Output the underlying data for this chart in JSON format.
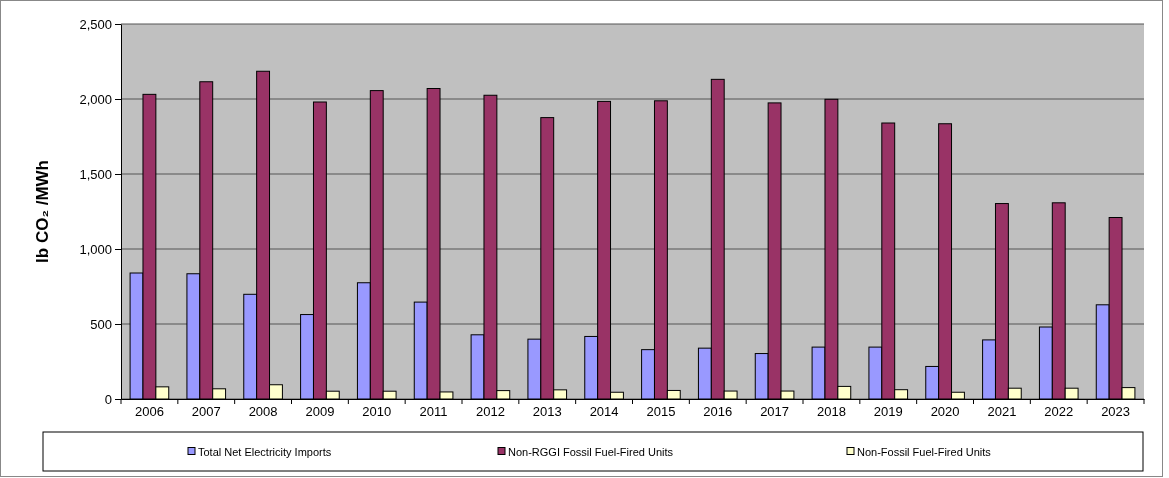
{
  "chart_data": {
    "type": "bar",
    "ylabel": "lb CO₂ /MWh",
    "categories": [
      "2006",
      "2007",
      "2008",
      "2009",
      "2010",
      "2011",
      "2012",
      "2013",
      "2014",
      "2015",
      "2016",
      "2017",
      "2018",
      "2019",
      "2020",
      "2021",
      "2022",
      "2023"
    ],
    "series": [
      {
        "name": "Total Net Electricity Imports",
        "color": "#9999ff",
        "values": [
          840,
          835,
          698,
          563,
          775,
          646,
          428,
          399,
          417,
          329,
          339,
          303,
          346,
          346,
          217,
          394,
          480,
          628
        ]
      },
      {
        "name": "Non-RGGI Fossil Fuel-Fired Units",
        "color": "#993366",
        "values": [
          2031,
          2115,
          2185,
          1980,
          2056,
          2070,
          2025,
          1876,
          1984,
          1988,
          2131,
          1974,
          1998,
          1840,
          1835,
          1303,
          1308,
          1210
        ]
      },
      {
        "name": "Non-Fossil Fuel-Fired Units",
        "color": "#ffffcc",
        "values": [
          81,
          68,
          95,
          52,
          52,
          47,
          56,
          61,
          45,
          57,
          53,
          53,
          84,
          62,
          45,
          72,
          72,
          76
        ]
      }
    ],
    "ylim": [
      0,
      2500
    ],
    "yticks": [
      {
        "value": 0,
        "label": "0"
      },
      {
        "value": 500,
        "label": "500"
      },
      {
        "value": 1000,
        "label": "1,000"
      },
      {
        "value": 1500,
        "label": "1,500"
      },
      {
        "value": 2000,
        "label": "2,000"
      },
      {
        "value": 2500,
        "label": "2,500"
      }
    ],
    "grid": "y",
    "legend": "bottom"
  }
}
